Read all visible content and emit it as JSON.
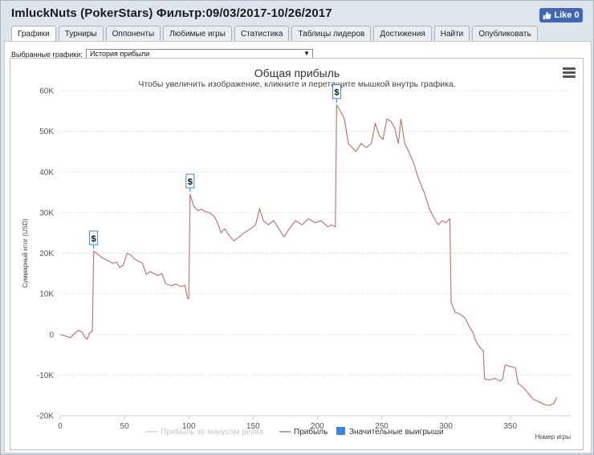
{
  "window": {
    "title": "ImluckNuts (PokerStars) Фильтр:09/03/2017-10/26/2017",
    "like_button": {
      "label": "Like 0",
      "icon": "thumbs-up-icon",
      "color": "#4267b2"
    }
  },
  "tabs": [
    {
      "label": "Графики",
      "active": true
    },
    {
      "label": "Турниры",
      "active": false
    },
    {
      "label": "Оппоненты",
      "active": false
    },
    {
      "label": "Любимые игры",
      "active": false
    },
    {
      "label": "Статистика",
      "active": false
    },
    {
      "label": "Таблицы лидеров",
      "active": false
    },
    {
      "label": "Достижения",
      "active": false
    },
    {
      "label": "Найти",
      "active": false
    },
    {
      "label": "Опубликовать",
      "active": false
    }
  ],
  "graph_selector": {
    "label": "Выбранные графики:",
    "value": "История прибыли"
  },
  "chart_menu_icon": "hamburger-menu-icon",
  "chart_data": {
    "type": "line",
    "title": "Общая прибыль",
    "subtitle": "Чтобы увеличить изображение, кликните и перетащите мышкой внутрь графика.",
    "xlabel": "Номер игры",
    "ylabel": "Суммарный итог (USD)",
    "xlim": [
      0,
      397
    ],
    "ylim": [
      -20000,
      60000
    ],
    "x_ticks": [
      0,
      50,
      100,
      150,
      200,
      250,
      300,
      350
    ],
    "y_ticks": [
      -20000,
      -10000,
      0,
      10000,
      20000,
      30000,
      40000,
      50000,
      60000
    ],
    "y_tick_labels": [
      "-20K",
      "-10K",
      "0",
      "10K",
      "20K",
      "30K",
      "40K",
      "50K",
      "60K"
    ],
    "grid": "horizontal dotted",
    "legend_placement": "bottom",
    "series": [
      {
        "name": "Прибыль за минусом рейка",
        "color": "#d0d0d0",
        "hidden": true,
        "points": []
      },
      {
        "name": "Прибыль",
        "color": "#c97474",
        "points": [
          [
            0,
            0
          ],
          [
            5,
            -500
          ],
          [
            8,
            -800
          ],
          [
            11,
            200
          ],
          [
            14,
            1000
          ],
          [
            17,
            600
          ],
          [
            19,
            -600
          ],
          [
            21,
            -1200
          ],
          [
            23,
            400
          ],
          [
            25,
            800
          ],
          [
            26,
            20500
          ],
          [
            29,
            19800
          ],
          [
            32,
            19000
          ],
          [
            35,
            18500
          ],
          [
            38,
            18000
          ],
          [
            41,
            17500
          ],
          [
            44,
            17800
          ],
          [
            46,
            16500
          ],
          [
            49,
            17000
          ],
          [
            52,
            20000
          ],
          [
            55,
            19500
          ],
          [
            58,
            18500
          ],
          [
            61,
            18000
          ],
          [
            64,
            17500
          ],
          [
            67,
            14800
          ],
          [
            70,
            15500
          ],
          [
            73,
            15000
          ],
          [
            76,
            14500
          ],
          [
            79,
            15000
          ],
          [
            82,
            12500
          ],
          [
            86,
            12000
          ],
          [
            90,
            12400
          ],
          [
            94,
            11800
          ],
          [
            97,
            12000
          ],
          [
            99,
            9000
          ],
          [
            100,
            8800
          ],
          [
            101,
            34500
          ],
          [
            104,
            31500
          ],
          [
            107,
            30500
          ],
          [
            110,
            30800
          ],
          [
            113,
            30200
          ],
          [
            116,
            30000
          ],
          [
            120,
            29000
          ],
          [
            123,
            27000
          ],
          [
            125,
            25000
          ],
          [
            128,
            26000
          ],
          [
            131,
            24500
          ],
          [
            135,
            23000
          ],
          [
            139,
            24000
          ],
          [
            143,
            25000
          ],
          [
            148,
            26000
          ],
          [
            152,
            27000
          ],
          [
            155,
            31000
          ],
          [
            158,
            28000
          ],
          [
            162,
            27000
          ],
          [
            166,
            28000
          ],
          [
            170,
            26000
          ],
          [
            174,
            24000
          ],
          [
            178,
            26000
          ],
          [
            183,
            28000
          ],
          [
            188,
            27000
          ],
          [
            193,
            28500
          ],
          [
            198,
            27500
          ],
          [
            203,
            28000
          ],
          [
            208,
            26500
          ],
          [
            211,
            27000
          ],
          [
            214,
            26500
          ],
          [
            215,
            56500
          ],
          [
            218,
            55000
          ],
          [
            221,
            53000
          ],
          [
            224,
            47000
          ],
          [
            227,
            46000
          ],
          [
            230,
            45000
          ],
          [
            234,
            47000
          ],
          [
            238,
            46000
          ],
          [
            242,
            47000
          ],
          [
            245,
            52000
          ],
          [
            248,
            49000
          ],
          [
            251,
            48000
          ],
          [
            254,
            53000
          ],
          [
            257,
            52500
          ],
          [
            260,
            51000
          ],
          [
            263,
            47000
          ],
          [
            265,
            53000
          ],
          [
            268,
            47000
          ],
          [
            271,
            45000
          ],
          [
            275,
            42000
          ],
          [
            279,
            38000
          ],
          [
            283,
            35000
          ],
          [
            287,
            31000
          ],
          [
            290,
            29000
          ],
          [
            294,
            27000
          ],
          [
            297,
            28000
          ],
          [
            300,
            27500
          ],
          [
            303,
            28500
          ],
          [
            304,
            8000
          ],
          [
            307,
            5500
          ],
          [
            311,
            5000
          ],
          [
            315,
            4000
          ],
          [
            318,
            2000
          ],
          [
            321,
            500
          ],
          [
            323,
            -1500
          ],
          [
            325,
            -2500
          ],
          [
            327,
            -3500
          ],
          [
            329,
            -4000
          ],
          [
            330,
            -11000
          ],
          [
            334,
            -11200
          ],
          [
            338,
            -10800
          ],
          [
            342,
            -11500
          ],
          [
            344,
            -11000
          ],
          [
            346,
            -7500
          ],
          [
            350,
            -7900
          ],
          [
            354,
            -8200
          ],
          [
            356,
            -12000
          ],
          [
            360,
            -13000
          ],
          [
            364,
            -14500
          ],
          [
            368,
            -16000
          ],
          [
            372,
            -16500
          ],
          [
            376,
            -17200
          ],
          [
            380,
            -17500
          ],
          [
            384,
            -17000
          ],
          [
            386,
            -15500
          ]
        ]
      },
      {
        "name": "Значительные выигрыши",
        "color": "#3d85d8",
        "marker": "$",
        "points": [
          [
            26,
            20500
          ],
          [
            101,
            34500
          ],
          [
            215,
            56500
          ]
        ]
      }
    ]
  }
}
